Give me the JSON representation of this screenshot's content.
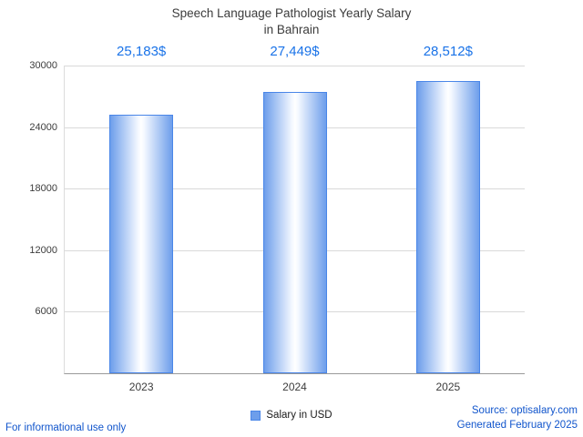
{
  "chart_data": {
    "type": "bar",
    "title": "Speech Language Pathologist Yearly Salary in Bahrain",
    "title_lines": [
      "Speech Language Pathologist Yearly Salary",
      "in Bahrain"
    ],
    "categories": [
      "2023",
      "2024",
      "2025"
    ],
    "values": [
      25183,
      27449,
      28512
    ],
    "value_labels": [
      "25,183$",
      "27,449$",
      "28,512$"
    ],
    "series_name": "Salary in USD",
    "ylim": [
      0,
      30000
    ],
    "yticks": [
      6000,
      12000,
      18000,
      24000,
      30000
    ],
    "grid": true,
    "legend": "Salary in USD",
    "legend_position": "bottom"
  },
  "footer": {
    "disclaimer": "For informational use only",
    "source": "Source: optisalary.com",
    "generated": "Generated February 2025"
  },
  "colors": {
    "bar_edge": "#6d9eeb",
    "bar_border": "#4a86e8",
    "label_blue": "#1a73e8",
    "footer_blue": "#1155cc",
    "grid_gray": "#d9d9d9",
    "title_gray": "#3c3c3c"
  }
}
